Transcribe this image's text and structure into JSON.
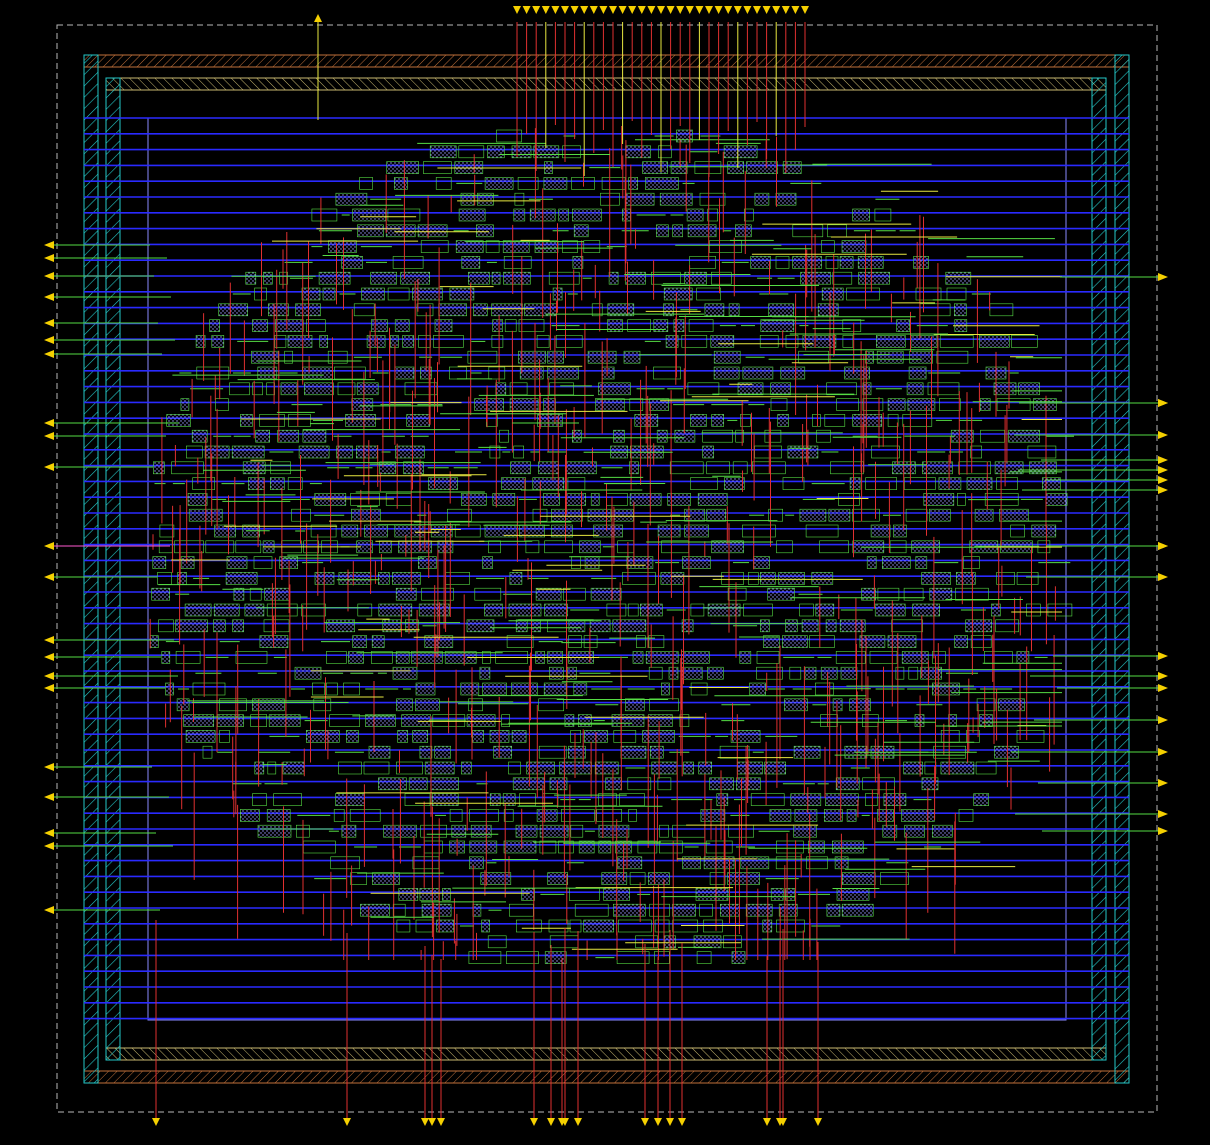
{
  "view": {
    "title": "",
    "background": "#000000"
  },
  "palette": {
    "boundary": "#b8b8b8",
    "outer_ring": "#c0703a",
    "inner_ring": "#c9b870",
    "ring_hatch": "#24c7c7",
    "metal_h": "#2a2aff",
    "metal_v": "#e03030",
    "metal_g": "#55dd44",
    "metal_y": "#e8e840",
    "core_outline": "#8a8aff",
    "cell_fill": "#9a9aff",
    "pin": "#f5d000",
    "pin_alt": "#ff5ad0"
  },
  "pins": {
    "top_count": 32,
    "bottom_count": 18,
    "left_count": 21,
    "right_count": 19
  },
  "icons": {
    "pin_top": "triangle-up-icon",
    "pin_bottom": "triangle-down-icon",
    "pin_left": "triangle-left-icon",
    "pin_right": "triangle-right-icon"
  }
}
